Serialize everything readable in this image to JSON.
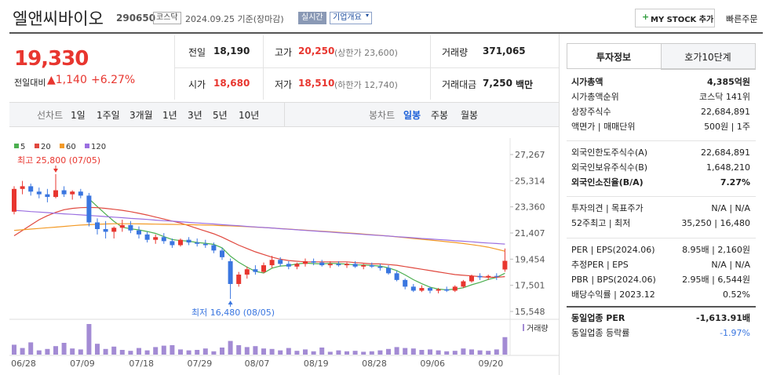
{
  "header": {
    "name": "엘앤씨바이오",
    "code": "290650",
    "market": "코스닥",
    "date": "2024.09.25 기준(장마감)",
    "realtime": "실시간",
    "overview": "기업개요",
    "mystock": "MY STOCK 추가",
    "quick": "빠른주문"
  },
  "price": {
    "now": "19,330",
    "change_label": "전일대비",
    "change": "▲1,140",
    "rate": "+6.27%"
  },
  "quote": {
    "prev": {
      "label": "전일",
      "value": "18,190"
    },
    "high": {
      "label": "고가",
      "value": "20,250",
      "sub": "(상한가 23,600)"
    },
    "volume": {
      "label": "거래량",
      "value": "371,065"
    },
    "open": {
      "label": "시가",
      "value": "18,680"
    },
    "low": {
      "label": "저가",
      "value": "18,510",
      "sub": "(하한가 12,740)"
    },
    "amount": {
      "label": "거래대금",
      "value": "7,250",
      "unit": "백만"
    }
  },
  "tabs": {
    "line_label": "선차트",
    "line": [
      "1일",
      "1주일",
      "3개월",
      "1년",
      "3년",
      "5년",
      "10년"
    ],
    "candle_label": "봉차트",
    "candle": [
      "일봉",
      "주봉",
      "월봉"
    ],
    "candle_active": 0
  },
  "chart_data": {
    "type": "candlestick",
    "up_color": "#e8362f",
    "down_color": "#3a76e0",
    "volume_color": "#a38bd4",
    "ylim": [
      15079,
      28264
    ],
    "yticks": [
      {
        "value": 27267,
        "label": "27,267"
      },
      {
        "value": 25314,
        "label": "25,314"
      },
      {
        "value": 23360,
        "label": "23,360"
      },
      {
        "value": 21407,
        "label": "21,407"
      },
      {
        "value": 19454,
        "label": "19,454"
      },
      {
        "value": 17501,
        "label": "17,501"
      },
      {
        "value": 15548,
        "label": "15,548"
      }
    ],
    "xlabels": [
      "06/28",
      "07/09",
      "07/18",
      "07/29",
      "08/07",
      "08/19",
      "08/28",
      "09/06",
      "09/20"
    ],
    "annotations": {
      "high": "최고 25,800 (07/05)",
      "low": "최저 16,480 (08/05)"
    },
    "volume_label": "거래량",
    "vlim": [
      0,
      700000
    ],
    "candles": [
      [
        23000,
        24900,
        22800,
        24700
      ],
      [
        24700,
        25300,
        24300,
        24900
      ],
      [
        24900,
        25100,
        24200,
        24500
      ],
      [
        24500,
        24800,
        24000,
        24300
      ],
      [
        24300,
        24700,
        23700,
        24100
      ],
      [
        24100,
        25800,
        24000,
        24600
      ],
      [
        24600,
        24900,
        24100,
        24300
      ],
      [
        24300,
        24600,
        23900,
        24500
      ],
      [
        24500,
        24700,
        24000,
        24200
      ],
      [
        24200,
        24400,
        21900,
        22200
      ],
      [
        22200,
        22500,
        21300,
        21700
      ],
      [
        21700,
        22300,
        21000,
        21500
      ],
      [
        21500,
        21900,
        21000,
        21800
      ],
      [
        21800,
        22400,
        21500,
        22000
      ],
      [
        22000,
        22300,
        21400,
        21600
      ],
      [
        21600,
        21900,
        21000,
        21300
      ],
      [
        21300,
        21500,
        20700,
        20900
      ],
      [
        20900,
        21300,
        20600,
        21100
      ],
      [
        21100,
        21400,
        20600,
        20800
      ],
      [
        20800,
        21000,
        20300,
        20500
      ],
      [
        20500,
        21000,
        20400,
        20900
      ],
      [
        20900,
        21100,
        20500,
        20700
      ],
      [
        20700,
        21000,
        20400,
        20600
      ],
      [
        20600,
        20900,
        20300,
        20500
      ],
      [
        20500,
        20700,
        19900,
        20100
      ],
      [
        20100,
        20300,
        19400,
        19600
      ],
      [
        19300,
        19500,
        16480,
        17600
      ],
      [
        17600,
        18500,
        17400,
        18300
      ],
      [
        18300,
        18900,
        18000,
        18700
      ],
      [
        18700,
        19000,
        18300,
        18500
      ],
      [
        18500,
        19200,
        18400,
        19000
      ],
      [
        19000,
        19700,
        18800,
        19400
      ],
      [
        19400,
        19600,
        18900,
        19100
      ],
      [
        19100,
        19300,
        18700,
        18900
      ],
      [
        18900,
        19200,
        18700,
        19100
      ],
      [
        19100,
        19500,
        18900,
        19300
      ],
      [
        19300,
        19500,
        19000,
        19200
      ],
      [
        19200,
        19400,
        18900,
        19000
      ],
      [
        19000,
        19300,
        18800,
        19100
      ],
      [
        19100,
        19300,
        18900,
        19000
      ],
      [
        19000,
        19200,
        18800,
        19100
      ],
      [
        19100,
        19300,
        18800,
        18900
      ],
      [
        18900,
        19100,
        18700,
        19000
      ],
      [
        19000,
        19200,
        18800,
        18900
      ],
      [
        18900,
        19100,
        18600,
        18800
      ],
      [
        18800,
        19000,
        18300,
        18400
      ],
      [
        18400,
        18600,
        17800,
        17900
      ],
      [
        17900,
        18000,
        17200,
        17400
      ],
      [
        17400,
        17600,
        17000,
        17100
      ],
      [
        17100,
        17500,
        17000,
        17300
      ],
      [
        17300,
        17400,
        16900,
        17100
      ],
      [
        17100,
        17300,
        16900,
        17200
      ],
      [
        17200,
        17400,
        17000,
        17100
      ],
      [
        17100,
        17500,
        17000,
        17400
      ],
      [
        17400,
        17900,
        17300,
        17800
      ],
      [
        17800,
        18300,
        17700,
        18200
      ],
      [
        18200,
        18400,
        17900,
        18100
      ],
      [
        18100,
        18300,
        17900,
        18200
      ],
      [
        18200,
        18400,
        17900,
        18190
      ],
      [
        18680,
        20250,
        18510,
        19330
      ]
    ],
    "volumes": [
      210000,
      140000,
      260000,
      90000,
      120000,
      180000,
      250000,
      130000,
      110000,
      650000,
      230000,
      120000,
      170000,
      100000,
      80000,
      140000,
      90000,
      160000,
      190000,
      200000,
      110000,
      90000,
      100000,
      130000,
      70000,
      150000,
      290000,
      200000,
      160000,
      180000,
      130000,
      120000,
      90000,
      140000,
      80000,
      110000,
      70000,
      150000,
      60000,
      90000,
      70000,
      80000,
      60000,
      70000,
      90000,
      120000,
      160000,
      140000,
      130000,
      100000,
      110000,
      90000,
      70000,
      80000,
      130000,
      110000,
      90000,
      80000,
      110000,
      371065
    ],
    "series": [
      {
        "name": "5",
        "color": "#4caf50",
        "values": [
          null,
          null,
          null,
          null,
          null,
          null,
          null,
          null,
          null,
          23960,
          23380,
          22820,
          22280,
          21840,
          21720,
          21640,
          21520,
          21380,
          21140,
          20920,
          20840,
          20800,
          20700,
          20640,
          20560,
          20300,
          19680,
          19220,
          18860,
          18540,
          18420,
          18780,
          18940,
          18980,
          19100,
          19160,
          19120,
          19100,
          19140,
          19120,
          19080,
          19020,
          19020,
          18980,
          18940,
          18800,
          18600,
          18280,
          17920,
          17620,
          17360,
          17220,
          17160,
          17220,
          17320,
          17540,
          17720,
          17940,
          18098,
          18404
        ]
      },
      {
        "name": "20",
        "color": "#e0483e",
        "values": [
          21200,
          21600,
          22000,
          22400,
          22700,
          22950,
          23150,
          23250,
          23300,
          23320,
          23300,
          23250,
          23180,
          23100,
          23000,
          22880,
          22750,
          22600,
          22450,
          22300,
          22150,
          21950,
          21750,
          21550,
          21350,
          21100,
          20800,
          20500,
          20250,
          20000,
          19800,
          19600,
          19450,
          19350,
          19300,
          19250,
          19250,
          19250,
          19250,
          19250,
          19250,
          19200,
          19150,
          19100,
          19100,
          19050,
          19000,
          18900,
          18800,
          18700,
          18600,
          18500,
          18400,
          18300,
          18250,
          18200,
          18150,
          18100,
          18100,
          18150
        ]
      },
      {
        "name": "60",
        "color": "#f39a27",
        "values": [
          21600,
          21650,
          21700,
          21750,
          21800,
          21850,
          21900,
          21950,
          22000,
          22030,
          22060,
          22080,
          22100,
          22100,
          22100,
          22090,
          22080,
          22070,
          22060,
          22050,
          22040,
          22030,
          22020,
          22000,
          21980,
          21960,
          21940,
          21910,
          21880,
          21850,
          21820,
          21780,
          21740,
          21700,
          21660,
          21620,
          21580,
          21540,
          21500,
          21460,
          21420,
          21380,
          21330,
          21280,
          21230,
          21180,
          21120,
          21060,
          21000,
          20940,
          20880,
          20820,
          20760,
          20700,
          20620,
          20540,
          20450,
          20350,
          20200,
          20050
        ]
      },
      {
        "name": "120",
        "color": "#9b6fe0",
        "values": [
          23100,
          23060,
          23010,
          22970,
          22930,
          22880,
          22840,
          22800,
          22760,
          22720,
          22680,
          22630,
          22590,
          22550,
          22500,
          22460,
          22420,
          22370,
          22330,
          22290,
          22250,
          22200,
          22160,
          22120,
          22080,
          22030,
          21990,
          21950,
          21900,
          21860,
          21820,
          21780,
          21730,
          21690,
          21650,
          21600,
          21560,
          21520,
          21480,
          21430,
          21390,
          21350,
          21300,
          21260,
          21220,
          21180,
          21130,
          21090,
          21050,
          21000,
          20960,
          20920,
          20880,
          20830,
          20790,
          20750,
          20700,
          20660,
          20620,
          20580
        ]
      }
    ]
  },
  "invest": {
    "tabs": [
      "투자정보",
      "호가10단계"
    ],
    "groups": [
      {
        "rows": [
          {
            "label": "시가총액",
            "value": "4,385억원"
          },
          {
            "label": "시가총액순위",
            "value": "코스닥 141위"
          },
          {
            "label": "상장주식수",
            "value": "22,684,891"
          },
          {
            "label": "액면가 | 매매단위",
            "value": "500원 | 1주"
          }
        ]
      },
      {
        "rows": [
          {
            "label": "외국인한도주식수(A)",
            "value": "22,684,891"
          },
          {
            "label": "외국인보유주식수(B)",
            "value": "1,648,210"
          },
          {
            "label": "외국인소진율(B/A)",
            "value": "7.27%"
          }
        ]
      },
      {
        "rows": [
          {
            "label": "투자의견 | 목표주가",
            "value": "N/A | N/A"
          },
          {
            "label": "52주최고 | 최저",
            "value": "35,250 | 16,480"
          }
        ]
      },
      {
        "rows": [
          {
            "label": "PER | EPS(2024.06)",
            "value": "8.95배 | 2,160원"
          },
          {
            "label": "추정PER | EPS",
            "value": "N/A | N/A"
          },
          {
            "label": "PBR | BPS(2024.06)",
            "value": "2.95배 | 6,544원"
          },
          {
            "label": "배당수익률 | 2023.12",
            "value": "0.52%"
          }
        ]
      },
      {
        "rows": [
          {
            "label": "동일업종 PER",
            "value": "-1,613.91배"
          },
          {
            "label": "동일업종 등락률",
            "value": "-1.97%"
          }
        ]
      }
    ]
  }
}
